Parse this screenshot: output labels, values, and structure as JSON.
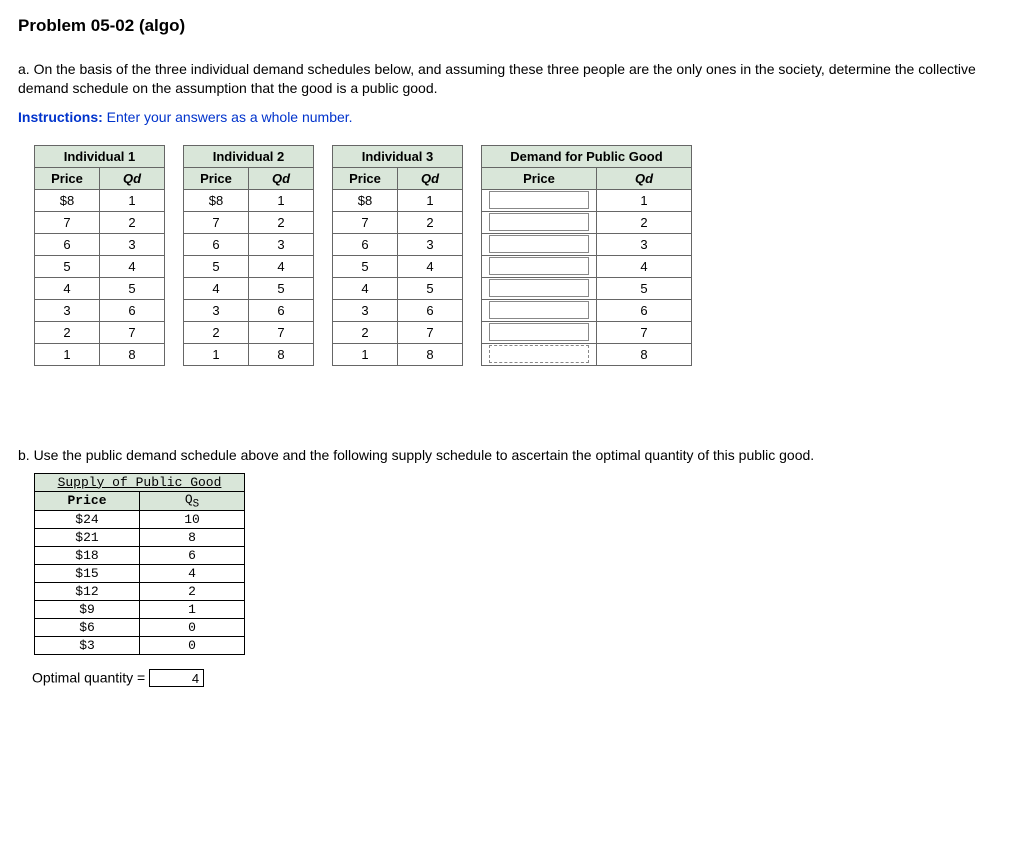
{
  "title": "Problem 05-02 (algo)",
  "part_a": "a. On the basis of the three individual demand schedules below, and assuming these three people are the only ones in the society, determine the collective demand schedule on the assumption that the good is a public good.",
  "instructions_label": "Instructions:",
  "instructions_text": " Enter your answers as a whole number.",
  "col_price": "Price",
  "col_qd": "Qd",
  "individuals": [
    {
      "title": "Individual 1",
      "rows": [
        [
          "$8",
          "1"
        ],
        [
          "7",
          "2"
        ],
        [
          "6",
          "3"
        ],
        [
          "5",
          "4"
        ],
        [
          "4",
          "5"
        ],
        [
          "3",
          "6"
        ],
        [
          "2",
          "7"
        ],
        [
          "1",
          "8"
        ]
      ]
    },
    {
      "title": "Individual 2",
      "rows": [
        [
          "$8",
          "1"
        ],
        [
          "7",
          "2"
        ],
        [
          "6",
          "3"
        ],
        [
          "5",
          "4"
        ],
        [
          "4",
          "5"
        ],
        [
          "3",
          "6"
        ],
        [
          "2",
          "7"
        ],
        [
          "1",
          "8"
        ]
      ]
    },
    {
      "title": "Individual 3",
      "rows": [
        [
          "$8",
          "1"
        ],
        [
          "7",
          "2"
        ],
        [
          "6",
          "3"
        ],
        [
          "5",
          "4"
        ],
        [
          "4",
          "5"
        ],
        [
          "3",
          "6"
        ],
        [
          "2",
          "7"
        ],
        [
          "1",
          "8"
        ]
      ]
    }
  ],
  "public": {
    "title": "Demand for Public Good",
    "qd": [
      "1",
      "2",
      "3",
      "4",
      "5",
      "6",
      "7",
      "8"
    ],
    "price_inputs": [
      "",
      "",
      "",
      "",
      "",
      "",
      "",
      ""
    ]
  },
  "part_b": "b. Use the public demand schedule above and the following supply schedule to ascertain the optimal quantity of this public good.",
  "supply": {
    "title": "Supply of Public Good",
    "col_price": "Price",
    "col_qs": "Q",
    "col_qs_sub": "S",
    "rows": [
      [
        "$24",
        "10"
      ],
      [
        "$21",
        "8"
      ],
      [
        "$18",
        "6"
      ],
      [
        "$15",
        "4"
      ],
      [
        "$12",
        "2"
      ],
      [
        "$9",
        "1"
      ],
      [
        "$6",
        "0"
      ],
      [
        "$3",
        "0"
      ]
    ]
  },
  "optimal_label": "Optimal quantity =",
  "optimal_value": "4",
  "colors": {
    "header_bg": "#d9e6d9",
    "instr": "#0033cc"
  }
}
